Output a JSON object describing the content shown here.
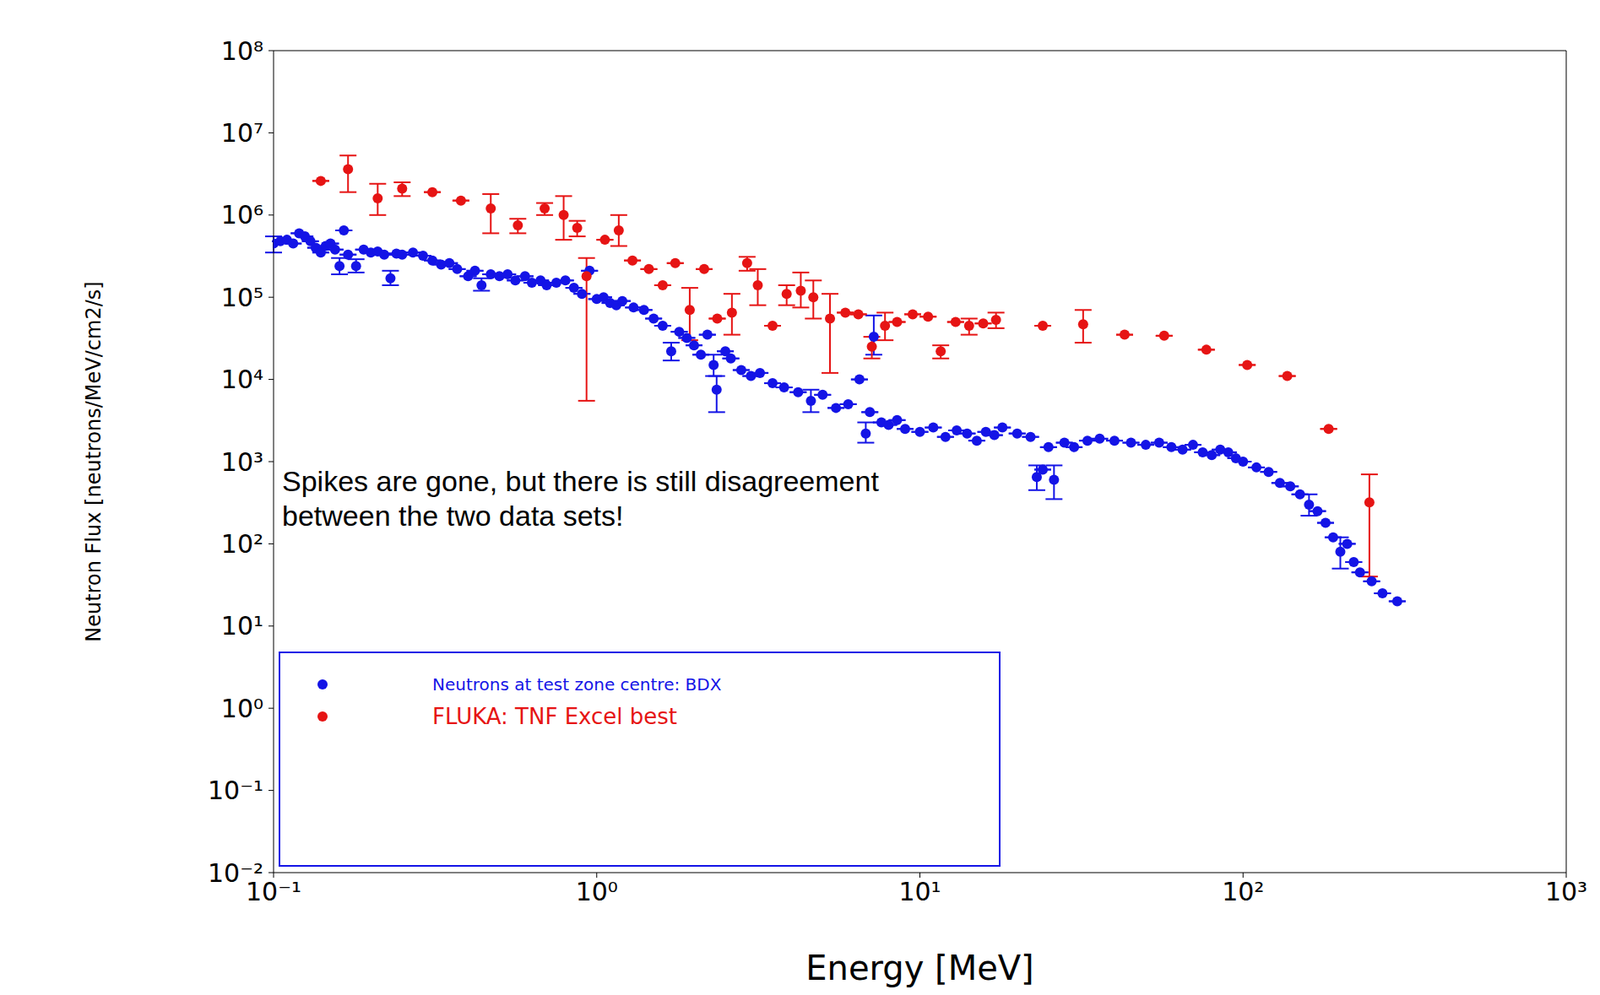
{
  "chart_data": {
    "type": "scatter",
    "log": true,
    "grid": false,
    "legend": "lower left",
    "annotation": "Spikes are gone, but there is still disagreement between the two data sets!",
    "x_label": "Energy [MeV]",
    "y_label": "Neutron Flux [neutrons/MeV/cm2/s]",
    "xlim": [
      0.1,
      1000
    ],
    "xticks": [
      {
        "value": 0.1,
        "label": "10⁻¹"
      },
      {
        "value": 1,
        "label": "10⁰"
      },
      {
        "value": 10,
        "label": "10¹"
      },
      {
        "value": 100,
        "label": "10²"
      },
      {
        "value": 1000,
        "label": "10³"
      }
    ],
    "ylim": [
      0.01,
      100000000
    ],
    "yticks": [
      {
        "value": 0.01,
        "label": "10⁻²"
      },
      {
        "value": 0.1,
        "label": "10⁻¹"
      },
      {
        "value": 1,
        "label": "10⁰"
      },
      {
        "value": 10,
        "label": "10¹"
      },
      {
        "value": 100,
        "label": "10²"
      },
      {
        "value": 1000,
        "label": "10³"
      },
      {
        "value": 10000,
        "label": "10⁴"
      },
      {
        "value": 100000,
        "label": "10⁵"
      },
      {
        "value": 1000000,
        "label": "10⁶"
      },
      {
        "value": 10000000,
        "label": "10⁷"
      },
      {
        "value": 100000000,
        "label": "10⁸"
      }
    ],
    "series": [
      {
        "name": "Neutrons at test zone centre: BDX",
        "color": "#1414e6",
        "marker": "circle",
        "x": [
          0.1,
          0.105,
          0.11,
          0.115,
          0.12,
          0.125,
          0.13,
          0.135,
          0.14,
          0.145,
          0.15,
          0.155,
          0.16,
          0.165,
          0.17,
          0.18,
          0.19,
          0.2,
          0.21,
          0.22,
          0.23,
          0.24,
          0.25,
          0.27,
          0.29,
          0.31,
          0.33,
          0.35,
          0.37,
          0.4,
          0.42,
          0.44,
          0.47,
          0.5,
          0.53,
          0.56,
          0.6,
          0.63,
          0.67,
          0.7,
          0.75,
          0.8,
          0.85,
          0.9,
          0.95,
          1.0,
          1.05,
          1.1,
          1.15,
          1.2,
          1.3,
          1.4,
          1.5,
          1.6,
          1.7,
          1.8,
          1.9,
          2.0,
          2.1,
          2.2,
          2.3,
          2.35,
          2.5,
          2.6,
          2.8,
          3.0,
          3.2,
          3.5,
          3.8,
          4.2,
          4.6,
          5.0,
          5.5,
          6.0,
          6.5,
          6.8,
          7.0,
          7.2,
          7.6,
          8.0,
          8.5,
          9.0,
          10,
          11,
          12,
          13,
          14,
          15,
          16,
          17,
          18,
          20,
          22,
          23,
          24,
          25,
          26,
          28,
          30,
          33,
          36,
          40,
          45,
          50,
          55,
          60,
          65,
          70,
          75,
          80,
          85,
          90,
          95,
          100,
          110,
          120,
          130,
          140,
          150,
          160,
          170,
          180,
          190,
          200,
          210,
          220,
          230,
          250,
          270,
          300
        ],
        "values": [
          450000.0,
          480000.0,
          500000.0,
          450000.0,
          600000.0,
          550000.0,
          480000.0,
          400000.0,
          350000.0,
          420000.0,
          450000.0,
          380000.0,
          240000.0,
          650000.0,
          330000.0,
          240000.0,
          380000.0,
          350000.0,
          360000.0,
          330000.0,
          170000.0,
          340000.0,
          330000.0,
          350000.0,
          320000.0,
          280000.0,
          250000.0,
          260000.0,
          220000.0,
          180000.0,
          210000.0,
          140000.0,
          190000.0,
          180000.0,
          190000.0,
          160000.0,
          180000.0,
          150000.0,
          160000.0,
          140000.0,
          150000.0,
          160000.0,
          130000.0,
          110000.0,
          210000.0,
          95000.0,
          100000.0,
          85000.0,
          80000.0,
          90000.0,
          75000.0,
          70000.0,
          55000.0,
          45000.0,
          22000.0,
          38000.0,
          32000.0,
          26000.0,
          20000.0,
          35000.0,
          15000.0,
          7500.0,
          22000.0,
          18000.0,
          13000.0,
          11000.0,
          12000.0,
          9000.0,
          8000.0,
          7000.0,
          5500.0,
          6500.0,
          4500.0,
          5000.0,
          10000.0,
          2200.0,
          4000.0,
          33000.0,
          3000.0,
          2800.0,
          3200.0,
          2500.0,
          2300.0,
          2600.0,
          2000.0,
          2400.0,
          2200.0,
          1800.0,
          2300.0,
          2100.0,
          2600.0,
          2200.0,
          2000.0,
          650.0,
          800.0,
          1500.0,
          600.0,
          1700.0,
          1500.0,
          1800.0,
          1900.0,
          1800.0,
          1700.0,
          1600.0,
          1700.0,
          1500.0,
          1400.0,
          1600.0,
          1300.0,
          1200.0,
          1400.0,
          1300.0,
          1100.0,
          1000.0,
          850.0,
          750.0,
          550.0,
          500.0,
          400.0,
          300.0,
          250.0,
          180.0,
          120.0,
          80.0,
          100.0,
          60.0,
          45.0,
          35.0,
          25.0,
          20.0
        ],
        "errors": [
          [
            350000.0,
            550000.0
          ],
          null,
          null,
          null,
          null,
          null,
          null,
          null,
          null,
          null,
          null,
          null,
          [
            190000.0,
            300000.0
          ],
          null,
          null,
          [
            200000.0,
            290000.0
          ],
          null,
          null,
          null,
          null,
          [
            140000.0,
            210000.0
          ],
          null,
          null,
          null,
          null,
          null,
          null,
          null,
          null,
          null,
          null,
          [
            120000.0,
            170000.0
          ],
          null,
          null,
          null,
          null,
          null,
          null,
          null,
          null,
          null,
          null,
          null,
          null,
          null,
          null,
          null,
          null,
          null,
          null,
          null,
          null,
          null,
          null,
          [
            17000.0,
            28000.0
          ],
          null,
          null,
          null,
          null,
          null,
          [
            11000.0,
            20000.0
          ],
          [
            4000.0,
            11000.0
          ],
          null,
          null,
          null,
          null,
          null,
          null,
          null,
          null,
          [
            4000.0,
            7500.0
          ],
          null,
          null,
          null,
          null,
          [
            1700.0,
            3000.0
          ],
          null,
          [
            20000.0,
            60000.0
          ],
          null,
          null,
          null,
          null,
          null,
          null,
          null,
          null,
          null,
          null,
          null,
          null,
          null,
          null,
          null,
          [
            450.0,
            900.0
          ],
          null,
          null,
          [
            350.0,
            900.0
          ],
          null,
          null,
          null,
          null,
          null,
          null,
          null,
          null,
          null,
          null,
          null,
          null,
          null,
          null,
          null,
          null,
          null,
          null,
          null,
          null,
          null,
          null,
          [
            220.0,
            400.0
          ],
          null,
          null,
          null,
          [
            50.0,
            120.0
          ],
          null,
          null,
          null,
          null,
          null,
          null
        ]
      },
      {
        "name": "FLUKA: TNF Excel best",
        "color": "#e61414",
        "marker": "circle",
        "x": [
          0.14,
          0.17,
          0.21,
          0.25,
          0.31,
          0.38,
          0.47,
          0.57,
          0.69,
          0.79,
          0.87,
          0.93,
          1.06,
          1.17,
          1.29,
          1.45,
          1.6,
          1.75,
          1.94,
          2.15,
          2.36,
          2.62,
          2.92,
          3.15,
          3.5,
          3.87,
          4.28,
          4.68,
          5.27,
          5.88,
          6.45,
          7.1,
          7.8,
          8.5,
          9.5,
          10.6,
          11.6,
          12.9,
          14.2,
          15.7,
          17.2,
          24,
          32,
          43,
          57,
          77,
          103,
          137,
          184,
          246
        ],
        "values": [
          2600000.0,
          3600000.0,
          1600000.0,
          2100000.0,
          1900000.0,
          1500000.0,
          1200000.0,
          750000.0,
          1200000.0,
          1000000.0,
          700000.0,
          180000.0,
          500000.0,
          650000.0,
          280000.0,
          220000.0,
          140000.0,
          260000.0,
          70000.0,
          220000.0,
          55000.0,
          65000.0,
          260000.0,
          140000.0,
          45000.0,
          110000.0,
          120000.0,
          100000.0,
          55000.0,
          65000.0,
          62000.0,
          25000.0,
          45000.0,
          50000.0,
          62000.0,
          58000.0,
          22000.0,
          50000.0,
          45000.0,
          48000.0,
          53000.0,
          45000.0,
          47000.0,
          35000.0,
          34000.0,
          23000.0,
          15000.0,
          11000.0,
          2500.0,
          320.0
        ],
        "errors": [
          null,
          [
            1900000.0,
            5300000.0
          ],
          [
            1000000.0,
            2400000.0
          ],
          [
            1700000.0,
            2500000.0
          ],
          null,
          null,
          [
            600000.0,
            1800000.0
          ],
          [
            600000.0,
            900000.0
          ],
          [
            1000000.0,
            1400000.0
          ],
          [
            500000.0,
            1700000.0
          ],
          [
            550000.0,
            850000.0
          ],
          [
            5500.0,
            300000.0
          ],
          null,
          [
            420000.0,
            1000000.0
          ],
          null,
          null,
          null,
          null,
          [
            30000.0,
            130000.0
          ],
          null,
          null,
          [
            35000.0,
            110000.0
          ],
          [
            210000.0,
            310000.0
          ],
          [
            80000.0,
            220000.0
          ],
          null,
          [
            80000.0,
            140000.0
          ],
          [
            75000.0,
            200000.0
          ],
          [
            55000.0,
            160000.0
          ],
          [
            12000.0,
            110000.0
          ],
          null,
          null,
          [
            18000.0,
            33000.0
          ],
          [
            30000.0,
            65000.0
          ],
          null,
          null,
          null,
          [
            18000.0,
            26000.0
          ],
          null,
          [
            35000.0,
            55000.0
          ],
          null,
          [
            42000.0,
            65000.0
          ],
          null,
          [
            28000.0,
            70000.0
          ],
          null,
          null,
          null,
          null,
          null,
          null,
          [
            40.0,
            700.0
          ]
        ]
      }
    ]
  }
}
